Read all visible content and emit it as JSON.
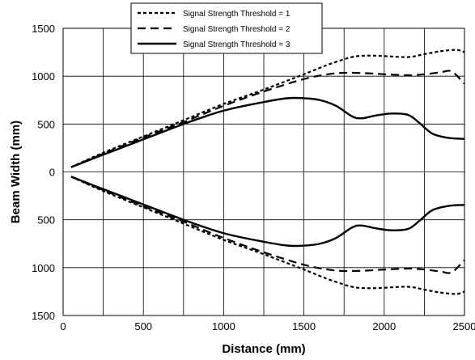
{
  "chart_data": {
    "type": "line",
    "xlabel": "Distance (mm)",
    "ylabel": "Beam Width (mm)",
    "xlim": [
      0,
      2500
    ],
    "ylim": [
      -1500,
      1500
    ],
    "x_ticks": [
      0,
      500,
      1000,
      1500,
      2000,
      2500
    ],
    "y_ticks": [
      1500,
      1000,
      500,
      0,
      -500,
      -1000,
      -1500
    ],
    "y_tick_labels": [
      "1500",
      "1000",
      "500",
      "0",
      "500",
      "1000",
      "1500"
    ],
    "x_tick_labels": [
      "0",
      "500",
      "1000",
      "1500",
      "2000",
      "2500"
    ],
    "grid": true,
    "x_gridlines": [
      250,
      500,
      750,
      1000,
      1250,
      1500,
      1750,
      2000,
      2250,
      2500
    ],
    "y_gridlines": [
      1500,
      1000,
      500,
      0,
      -500,
      -1000,
      -1500
    ],
    "legend_position": "top-center",
    "series": [
      {
        "name": "Signal Strength Threshold = 1",
        "style": "dotted",
        "x": [
          50,
          250,
          500,
          750,
          1000,
          1250,
          1500,
          1650,
          1800,
          1900,
          2000,
          2150,
          2250,
          2350,
          2450,
          2500
        ],
        "y_upper": [
          50,
          200,
          370,
          540,
          710,
          860,
          1020,
          1120,
          1200,
          1215,
          1210,
          1200,
          1230,
          1260,
          1275,
          1250
        ],
        "y_lower": [
          -50,
          -200,
          -370,
          -540,
          -710,
          -860,
          -1020,
          -1120,
          -1200,
          -1215,
          -1210,
          -1200,
          -1230,
          -1260,
          -1275,
          -1250
        ]
      },
      {
        "name": "Signal Strength Threshold = 2",
        "style": "dashed",
        "x": [
          50,
          250,
          500,
          750,
          1000,
          1250,
          1500,
          1650,
          1750,
          1900,
          2000,
          2150,
          2250,
          2350,
          2420,
          2500
        ],
        "y_upper": [
          50,
          190,
          360,
          520,
          690,
          840,
          970,
          1020,
          1035,
          1030,
          1020,
          1010,
          1020,
          1040,
          1050,
          920
        ],
        "y_lower": [
          -50,
          -190,
          -360,
          -520,
          -690,
          -840,
          -970,
          -1020,
          -1035,
          -1030,
          -1020,
          -1010,
          -1020,
          -1040,
          -1050,
          -920
        ]
      },
      {
        "name": "Signal Strength Threshold = 3",
        "style": "solid",
        "x": [
          50,
          250,
          500,
          750,
          1000,
          1250,
          1400,
          1500,
          1600,
          1700,
          1800,
          1860,
          1950,
          2050,
          2150,
          2220,
          2300,
          2400,
          2500
        ],
        "y_upper": [
          50,
          180,
          340,
          500,
          640,
          730,
          770,
          770,
          750,
          690,
          580,
          560,
          590,
          610,
          595,
          510,
          400,
          355,
          345
        ],
        "y_lower": [
          -50,
          -180,
          -340,
          -500,
          -640,
          -730,
          -770,
          -770,
          -750,
          -690,
          -580,
          -560,
          -590,
          -610,
          -595,
          -510,
          -400,
          -355,
          -345
        ]
      }
    ]
  }
}
